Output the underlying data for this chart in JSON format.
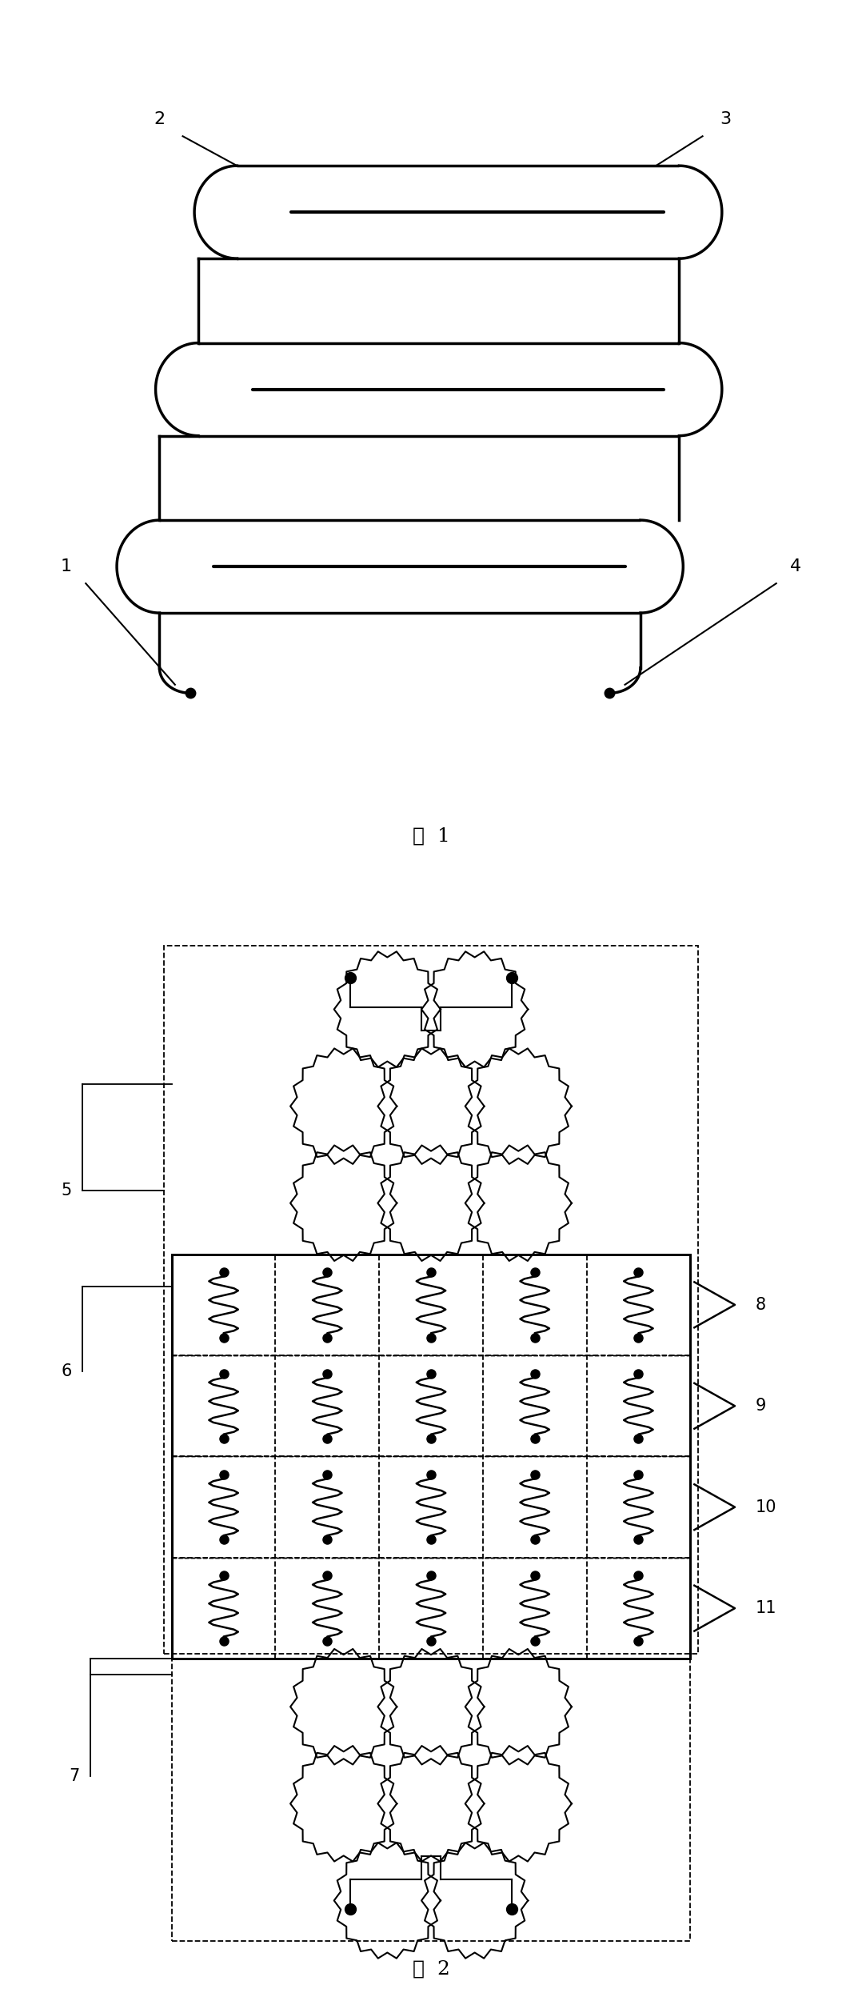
{
  "bg_color": "#ffffff",
  "line_color": "#000000",
  "fig1": {
    "title": "图  1",
    "labels": [
      "1",
      "2",
      "3",
      "4"
    ],
    "lw": 2.5
  },
  "fig2": {
    "title": "图  2",
    "labels": [
      "5",
      "6",
      "7",
      "8",
      "9",
      "10",
      "11"
    ],
    "lw": 1.8
  }
}
